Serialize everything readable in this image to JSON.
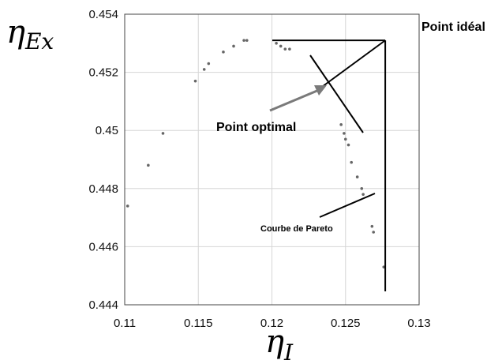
{
  "chart_data": {
    "type": "scatter",
    "x_axis": {
      "symbol": "η",
      "subscript": "I",
      "range": [
        0.11,
        0.13
      ],
      "ticks": [
        0.11,
        0.115,
        0.12,
        0.125,
        0.13
      ],
      "tick_labels": [
        "0.11",
        "0.115",
        "0.12",
        "0.125",
        "0.13"
      ]
    },
    "y_axis": {
      "symbol": "η",
      "subscript": "Ex",
      "range": [
        0.444,
        0.454
      ],
      "ticks": [
        0.444,
        0.446,
        0.448,
        0.45,
        0.452,
        0.454
      ],
      "tick_labels": [
        "0.444",
        "0.446",
        "0.448",
        "0.45",
        "0.452",
        "0.454"
      ]
    },
    "grid": true,
    "series": [
      {
        "marker_color": "#666666",
        "points": [
          [
            0.1102,
            0.4474
          ],
          [
            0.1116,
            0.4488
          ],
          [
            0.1126,
            0.4499
          ],
          [
            0.1148,
            0.4517
          ],
          [
            0.1154,
            0.4521
          ],
          [
            0.1157,
            0.4523
          ],
          [
            0.1167,
            0.4527
          ],
          [
            0.1174,
            0.4529
          ],
          [
            0.1181,
            0.4531
          ],
          [
            0.1183,
            0.4531
          ],
          [
            0.1203,
            0.453
          ],
          [
            0.1206,
            0.4529
          ],
          [
            0.1209,
            0.4528
          ],
          [
            0.1212,
            0.4528
          ],
          [
            0.1247,
            0.4502
          ],
          [
            0.1249,
            0.4499
          ],
          [
            0.125,
            0.4497
          ],
          [
            0.1252,
            0.4495
          ],
          [
            0.1254,
            0.4489
          ],
          [
            0.1258,
            0.4484
          ],
          [
            0.1261,
            0.448
          ],
          [
            0.1262,
            0.4478
          ],
          [
            0.1268,
            0.4467
          ],
          [
            0.1269,
            0.4465
          ],
          [
            0.1276,
            0.4453
          ]
        ]
      }
    ],
    "annotations": {
      "ideal_point": {
        "label": "Point idéal",
        "x": 0.1277,
        "y": 0.4531
      },
      "optimal_point": {
        "label": "Point optimal",
        "x": 0.1234,
        "y": 0.4515
      },
      "pareto_curve": {
        "label": "Courbe de Pareto"
      }
    }
  }
}
